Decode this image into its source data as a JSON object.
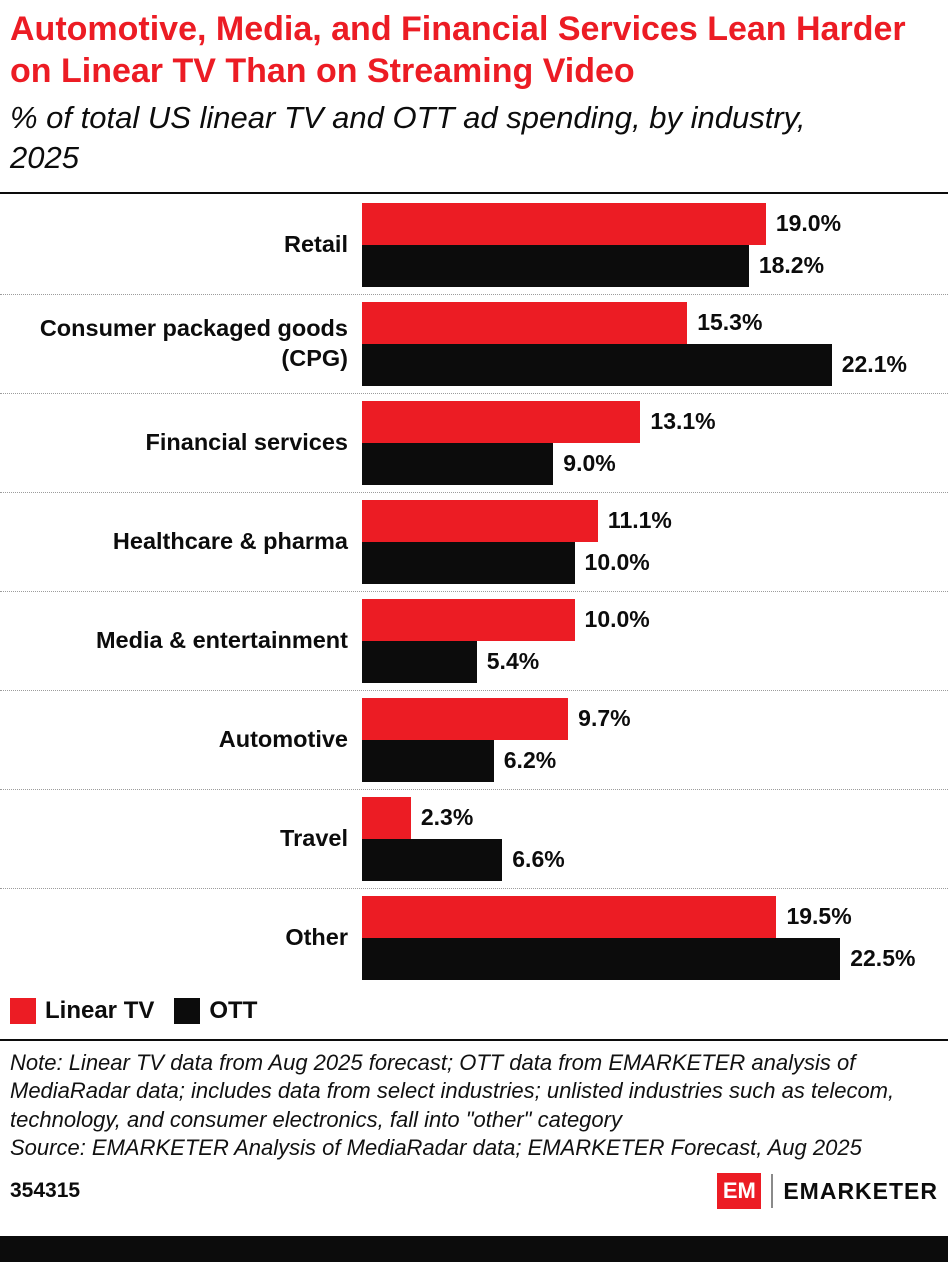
{
  "chart_data": {
    "type": "bar",
    "orientation": "horizontal",
    "title": "Automotive, Media, and Financial Services Lean Harder on Linear TV Than on Streaming Video",
    "subtitle": "% of total US linear TV and OTT ad spending, by industry, 2025",
    "categories": [
      "Retail",
      "Consumer packaged goods (CPG)",
      "Financial services",
      "Healthcare & pharma",
      "Media & entertainment",
      "Automotive",
      "Travel",
      "Other"
    ],
    "series": [
      {
        "name": "Linear TV",
        "color": "#ec1c24",
        "values": [
          19.0,
          15.3,
          13.1,
          11.1,
          10.0,
          9.7,
          2.3,
          19.5
        ]
      },
      {
        "name": "OTT",
        "color": "#0c0c0c",
        "values": [
          18.2,
          22.1,
          9.0,
          10.0,
          5.4,
          6.2,
          6.6,
          22.5
        ]
      }
    ],
    "value_label_format": "{value}%",
    "xlim": [
      0,
      27.1
    ],
    "grid": false,
    "legend_position": "bottom-left"
  },
  "footnote": {
    "note": "Note: Linear TV data from Aug 2025 forecast; OTT data from EMARKETER analysis of MediaRadar data; includes data from select industries; unlisted industries such as telecom, technology, and consumer electronics, fall into \"other\" category",
    "source": "Source: EMARKETER Analysis of MediaRadar data; EMARKETER Forecast, Aug 2025"
  },
  "footer": {
    "chart_id": "354315",
    "logo": {
      "em": "EM",
      "wordmark": "EMARKETER"
    }
  },
  "colors": {
    "accent_red": "#ec1c24",
    "bar_black": "#0c0c0c"
  }
}
